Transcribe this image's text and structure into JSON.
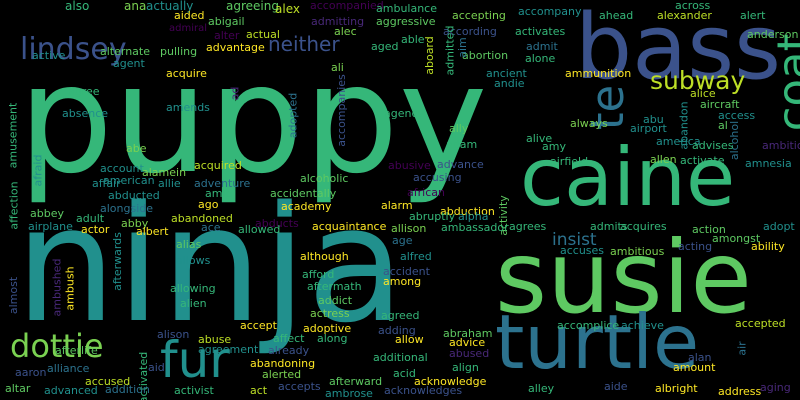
{
  "background": "#000000",
  "words": [
    {
      "t": "puppy",
      "c": "#35b779"
    },
    {
      "t": "ninja",
      "c": "#21908d"
    },
    {
      "t": "susie",
      "c": "#5ec962"
    },
    {
      "t": "bass",
      "c": "#3b528b"
    },
    {
      "t": "caine",
      "c": "#35b779"
    },
    {
      "t": "turtle",
      "c": "#2c728e"
    },
    {
      "t": "te",
      "c": "#2c728e"
    },
    {
      "t": "coat",
      "c": "#35b779"
    },
    {
      "t": "lindsey",
      "c": "#3b528b"
    },
    {
      "t": "fur",
      "c": "#21908d"
    },
    {
      "t": "dottie",
      "c": "#7ad151"
    },
    {
      "t": "subway",
      "c": "#bddf26"
    },
    {
      "t": "neither",
      "c": "#3b528b"
    },
    {
      "t": "insist",
      "c": "#2c728e"
    },
    {
      "t": "also",
      "c": "#35b779"
    },
    {
      "t": "ana",
      "c": "#7ad151"
    },
    {
      "t": "actually",
      "c": "#21908d"
    },
    {
      "t": "agreeing",
      "c": "#5ec962"
    },
    {
      "t": "alex",
      "c": "#bddf26"
    },
    {
      "t": "accompanied",
      "c": "#440154"
    },
    {
      "t": "ambulance",
      "c": "#35b779"
    },
    {
      "t": "accompany",
      "c": "#21908d"
    },
    {
      "t": "ahead",
      "c": "#35b779"
    },
    {
      "t": "alexander",
      "c": "#bddf26"
    },
    {
      "t": "across",
      "c": "#35b779"
    },
    {
      "t": "alert",
      "c": "#35b779"
    },
    {
      "t": "aided",
      "c": "#fde725"
    },
    {
      "t": "abigail",
      "c": "#5ec962"
    },
    {
      "t": "admitting",
      "c": "#482878"
    },
    {
      "t": "aggressive",
      "c": "#5ec962"
    },
    {
      "t": "accepting",
      "c": "#7ad151"
    },
    {
      "t": "admiral",
      "c": "#440154"
    },
    {
      "t": "alter",
      "c": "#440154"
    },
    {
      "t": "alec",
      "c": "#7ad151"
    },
    {
      "t": "able",
      "c": "#35b779"
    },
    {
      "t": "according",
      "c": "#3b528b"
    },
    {
      "t": "activates",
      "c": "#35b779"
    },
    {
      "t": "anderson",
      "c": "#5ec962"
    },
    {
      "t": "active",
      "c": "#21908d"
    },
    {
      "t": "alternate",
      "c": "#5ec962"
    },
    {
      "t": "pulling",
      "c": "#5ec962"
    },
    {
      "t": "actual",
      "c": "#bddf26"
    },
    {
      "t": "advantage",
      "c": "#fde725"
    },
    {
      "t": "agent",
      "c": "#21908d"
    },
    {
      "t": "ali",
      "c": "#7ad151"
    },
    {
      "t": "aged",
      "c": "#35b779"
    },
    {
      "t": "abortion",
      "c": "#5ec962"
    },
    {
      "t": "admit",
      "c": "#2c728e"
    },
    {
      "t": "alone",
      "c": "#35b779"
    },
    {
      "t": "ammunition",
      "c": "#fde725"
    },
    {
      "t": "acquire",
      "c": "#fde725"
    },
    {
      "t": "ancient",
      "c": "#21908d"
    },
    {
      "t": "andie",
      "c": "#21908d"
    },
    {
      "t": "aboard",
      "c": "#bddf26"
    },
    {
      "t": "admitted",
      "c": "#35b779"
    },
    {
      "t": "aim",
      "c": "#2c728e"
    },
    {
      "t": "agree",
      "c": "#35b779"
    },
    {
      "t": "alice",
      "c": "#bddf26"
    },
    {
      "t": "aircraft",
      "c": "#5ec962"
    },
    {
      "t": "access",
      "c": "#21908d"
    },
    {
      "t": "al",
      "c": "#5ec962"
    },
    {
      "t": "amends",
      "c": "#21908d"
    },
    {
      "t": "absence",
      "c": "#21908d"
    },
    {
      "t": "adopted",
      "c": "#2c728e"
    },
    {
      "t": "accompanies",
      "c": "#3b528b"
    },
    {
      "t": "agency",
      "c": "#35b779"
    },
    {
      "t": "ally",
      "c": "#5ec962"
    },
    {
      "t": "always",
      "c": "#7ad151"
    },
    {
      "t": "alive",
      "c": "#35b779"
    },
    {
      "t": "abu",
      "c": "#21908d"
    },
    {
      "t": "airport",
      "c": "#21908d"
    },
    {
      "t": "abandon",
      "c": "#21908d"
    },
    {
      "t": "alcohol",
      "c": "#2c728e"
    },
    {
      "t": "ambition",
      "c": "#482878"
    },
    {
      "t": "amy",
      "c": "#35b779"
    },
    {
      "t": "adam",
      "c": "#35b779"
    },
    {
      "t": "america",
      "c": "#21908d"
    },
    {
      "t": "advises",
      "c": "#35b779"
    },
    {
      "t": "abe",
      "c": "#7ad151"
    },
    {
      "t": "amnesia",
      "c": "#21908d"
    },
    {
      "t": "advance",
      "c": "#3b528b"
    },
    {
      "t": "airfield",
      "c": "#35b779"
    },
    {
      "t": "allen",
      "c": "#7ad151"
    },
    {
      "t": "activate",
      "c": "#35b779"
    },
    {
      "t": "account",
      "c": "#21908d"
    },
    {
      "t": "american",
      "c": "#21908d"
    },
    {
      "t": "alamein",
      "c": "#7ad151"
    },
    {
      "t": "acquired",
      "c": "#bddf26"
    },
    {
      "t": "affair",
      "c": "#21908d"
    },
    {
      "t": "allie",
      "c": "#21908d"
    },
    {
      "t": "adventure",
      "c": "#2c728e"
    },
    {
      "t": "alcoholic",
      "c": "#5ec962"
    },
    {
      "t": "accusing",
      "c": "#3b528b"
    },
    {
      "t": "abusive",
      "c": "#440154"
    },
    {
      "t": "amusement",
      "c": "#35b779"
    },
    {
      "t": "affection",
      "c": "#35b779"
    },
    {
      "t": "afraid",
      "c": "#21908d"
    },
    {
      "t": "abducted",
      "c": "#21908d"
    },
    {
      "t": "alongside",
      "c": "#2c728e"
    },
    {
      "t": "amid",
      "c": "#35b779"
    },
    {
      "t": "ago",
      "c": "#fde725"
    },
    {
      "t": "abbey",
      "c": "#5ec962"
    },
    {
      "t": "accidentally",
      "c": "#5ec962"
    },
    {
      "t": "african",
      "c": "#440154"
    },
    {
      "t": "adopt",
      "c": "#21908d"
    },
    {
      "t": "adult",
      "c": "#35b779"
    },
    {
      "t": "abby",
      "c": "#7ad151"
    },
    {
      "t": "abandoned",
      "c": "#bddf26"
    },
    {
      "t": "abducts",
      "c": "#440154"
    },
    {
      "t": "academy",
      "c": "#fde725"
    },
    {
      "t": "alarm",
      "c": "#fde725"
    },
    {
      "t": "abduction",
      "c": "#fde725"
    },
    {
      "t": "abruptly",
      "c": "#35b779"
    },
    {
      "t": "alpha",
      "c": "#21908d"
    },
    {
      "t": "activity",
      "c": "#5ec962"
    },
    {
      "t": "admits",
      "c": "#35b779"
    },
    {
      "t": "acquires",
      "c": "#35b779"
    },
    {
      "t": "action",
      "c": "#5ec962"
    },
    {
      "t": "amongst",
      "c": "#5ec962"
    },
    {
      "t": "airplane",
      "c": "#21908d"
    },
    {
      "t": "actor",
      "c": "#fde725"
    },
    {
      "t": "albert",
      "c": "#fde725"
    },
    {
      "t": "ace",
      "c": "#2c728e"
    },
    {
      "t": "allowed",
      "c": "#35b779"
    },
    {
      "t": "acquaintance",
      "c": "#fde725"
    },
    {
      "t": "allison",
      "c": "#7ad151"
    },
    {
      "t": "ambassador",
      "c": "#35b779"
    },
    {
      "t": "agrees",
      "c": "#35b779"
    },
    {
      "t": "accuses",
      "c": "#21908d"
    },
    {
      "t": "ambitious",
      "c": "#7ad151"
    },
    {
      "t": "ability",
      "c": "#fde725"
    },
    {
      "t": "afterwards",
      "c": "#21908d"
    },
    {
      "t": "alias",
      "c": "#5ec962"
    },
    {
      "t": "age",
      "c": "#2c728e"
    },
    {
      "t": "acting",
      "c": "#3b528b"
    },
    {
      "t": "aging",
      "c": "#482878"
    },
    {
      "t": "allows",
      "c": "#21908d"
    },
    {
      "t": "although",
      "c": "#fde725"
    },
    {
      "t": "alfred",
      "c": "#21908d"
    },
    {
      "t": "accident",
      "c": "#3b528b"
    },
    {
      "t": "almost",
      "c": "#3b528b"
    },
    {
      "t": "ambushed",
      "c": "#482878"
    },
    {
      "t": "ambush",
      "c": "#fde725"
    },
    {
      "t": "allowing",
      "c": "#35b779"
    },
    {
      "t": "afford",
      "c": "#35b779"
    },
    {
      "t": "aftermath",
      "c": "#35b779"
    },
    {
      "t": "among",
      "c": "#fde725"
    },
    {
      "t": "alien",
      "c": "#35b779"
    },
    {
      "t": "addict",
      "c": "#5ec962"
    },
    {
      "t": "actress",
      "c": "#7ad151"
    },
    {
      "t": "agreed",
      "c": "#35b779"
    },
    {
      "t": "accomplice",
      "c": "#35b779"
    },
    {
      "t": "achieve",
      "c": "#21908d"
    },
    {
      "t": "accepted",
      "c": "#bddf26"
    },
    {
      "t": "alison",
      "c": "#3b528b"
    },
    {
      "t": "accept",
      "c": "#fde725"
    },
    {
      "t": "adoptive",
      "c": "#fde725"
    },
    {
      "t": "adding",
      "c": "#3b528b"
    },
    {
      "t": "abraham",
      "c": "#5ec962"
    },
    {
      "t": "advice",
      "c": "#fde725"
    },
    {
      "t": "abuse",
      "c": "#bddf26"
    },
    {
      "t": "affect",
      "c": "#35b779"
    },
    {
      "t": "along",
      "c": "#35b779"
    },
    {
      "t": "allow",
      "c": "#fde725"
    },
    {
      "t": "abused",
      "c": "#482878"
    },
    {
      "t": "afterlife",
      "c": "#5ec962"
    },
    {
      "t": "agreement",
      "c": "#21908d"
    },
    {
      "t": "already",
      "c": "#3b528b"
    },
    {
      "t": "additional",
      "c": "#35b779"
    },
    {
      "t": "align",
      "c": "#35b779"
    },
    {
      "t": "alan",
      "c": "#3b528b"
    },
    {
      "t": "aaron",
      "c": "#3b528b"
    },
    {
      "t": "alliance",
      "c": "#2c728e"
    },
    {
      "t": "aid",
      "c": "#3b528b"
    },
    {
      "t": "abandoning",
      "c": "#fde725"
    },
    {
      "t": "alerted",
      "c": "#7ad151"
    },
    {
      "t": "acid",
      "c": "#35b779"
    },
    {
      "t": "amount",
      "c": "#fde725"
    },
    {
      "t": "air",
      "c": "#2c728e"
    },
    {
      "t": "altar",
      "c": "#5ec962"
    },
    {
      "t": "advanced",
      "c": "#21908d"
    },
    {
      "t": "accused",
      "c": "#bddf26"
    },
    {
      "t": "activated",
      "c": "#35b779"
    },
    {
      "t": "addition",
      "c": "#2c728e"
    },
    {
      "t": "activist",
      "c": "#35b779"
    },
    {
      "t": "act",
      "c": "#bddf26"
    },
    {
      "t": "accepts",
      "c": "#3b528b"
    },
    {
      "t": "afterward",
      "c": "#5ec962"
    },
    {
      "t": "ambrose",
      "c": "#21908d"
    },
    {
      "t": "acknowledge",
      "c": "#fde725"
    },
    {
      "t": "acknowledges",
      "c": "#3b528b"
    },
    {
      "t": "alley",
      "c": "#35b779"
    },
    {
      "t": "aide",
      "c": "#3b528b"
    },
    {
      "t": "albright",
      "c": "#fde725"
    },
    {
      "t": "address",
      "c": "#fde725"
    },
    {
      "t": "ad",
      "c": "#482878"
    }
  ]
}
